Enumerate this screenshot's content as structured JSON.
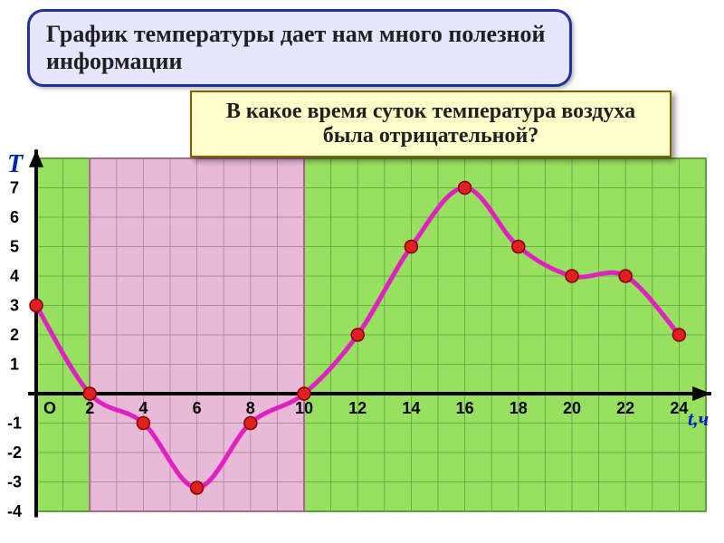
{
  "title": "График температуры дает нам много полезной информации",
  "question": "В какое время суток температура воздуха была отрицательной?",
  "chart": {
    "type": "line",
    "y_axis_label": "Т",
    "x_axis_label": "t,ч",
    "x_ticks": [
      0,
      2,
      4,
      6,
      8,
      10,
      12,
      14,
      16,
      18,
      20,
      22,
      24
    ],
    "y_ticks": [
      -4,
      -3,
      -2,
      -1,
      1,
      2,
      3,
      4,
      5,
      6,
      7
    ],
    "origin_label": "О",
    "points": [
      {
        "x": 0,
        "y": 3
      },
      {
        "x": 2,
        "y": 0
      },
      {
        "x": 4,
        "y": -1
      },
      {
        "x": 6,
        "y": -3.2
      },
      {
        "x": 8,
        "y": -1
      },
      {
        "x": 10,
        "y": 0
      },
      {
        "x": 12,
        "y": 2
      },
      {
        "x": 14,
        "y": 5
      },
      {
        "x": 16,
        "y": 7
      },
      {
        "x": 18,
        "y": 5
      },
      {
        "x": 20,
        "y": 4
      },
      {
        "x": 22,
        "y": 4
      },
      {
        "x": 24,
        "y": 2
      }
    ],
    "highlight_regions": [
      {
        "x_start": 2,
        "x_end": 10,
        "color": "#e8bad8",
        "border": "#a05080"
      }
    ],
    "background_color": "#98e060",
    "background_border": "#60a040",
    "grid_color": "#60a040",
    "grid_color_pink": "#c080a0",
    "line_color": "#e020c0",
    "line_width": 5,
    "marker_fill": "#e02020",
    "marker_stroke": "#800000",
    "marker_radius": 7,
    "axis_color": "#000000",
    "axis_label_color": "#0020c0",
    "tick_label_color": "#000000",
    "tick_fontsize": 18,
    "axis_label_fontsize": 28,
    "xlim": [
      0,
      25
    ],
    "ylim": [
      -4,
      8
    ]
  }
}
